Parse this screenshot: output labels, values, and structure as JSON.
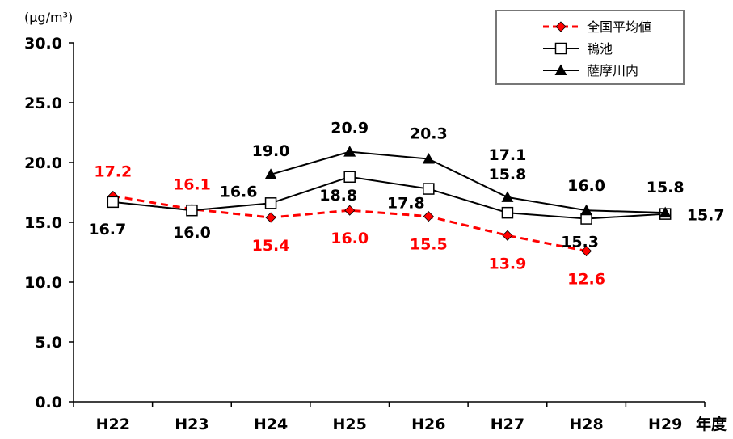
{
  "chart_data": {
    "type": "line",
    "unit_label": "(μg/m³)",
    "xlabel": "年度",
    "ylabel": "",
    "ylim": [
      0,
      30
    ],
    "y_ticks": [
      "0.0",
      "5.0",
      "10.0",
      "15.0",
      "20.0",
      "25.0",
      "30.0"
    ],
    "categories": [
      "H22",
      "H23",
      "H24",
      "H25",
      "H26",
      "H27",
      "H28",
      "H29"
    ],
    "legend_position": "top-right",
    "grid": false,
    "series": [
      {
        "name": "全国平均値",
        "color": "#ff0000",
        "marker": "diamond",
        "line_style": "dashed",
        "values": [
          17.2,
          16.1,
          15.4,
          16.0,
          15.5,
          13.9,
          12.6,
          null
        ],
        "labels": [
          "17.2",
          "16.1",
          "15.4",
          "16.0",
          "15.5",
          "13.9",
          "12.6",
          null
        ]
      },
      {
        "name": "鴨池",
        "color": "#000000",
        "marker": "square",
        "line_style": "solid",
        "values": [
          16.7,
          16.0,
          16.6,
          18.8,
          17.8,
          15.8,
          15.3,
          15.7
        ],
        "labels": [
          "16.7",
          "16.0",
          "16.6",
          "18.8",
          "17.8",
          "15.8",
          "15.3",
          "15.7"
        ]
      },
      {
        "name": "薩摩川内",
        "color": "#000000",
        "marker": "triangle",
        "line_style": "solid",
        "values": [
          null,
          null,
          19.0,
          20.9,
          20.3,
          17.1,
          16.0,
          15.8
        ],
        "labels": [
          null,
          null,
          "19.0",
          "20.9",
          "20.3",
          "17.1",
          "16.0",
          "15.8"
        ]
      }
    ]
  }
}
